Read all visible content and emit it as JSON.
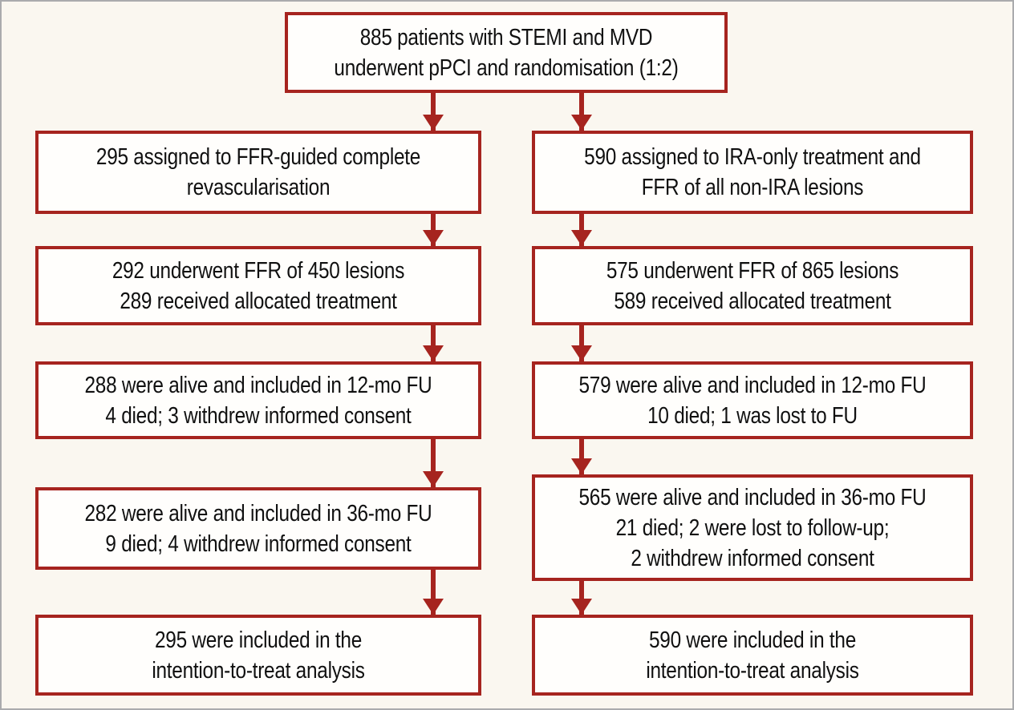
{
  "figure": {
    "type": "consort-patient-flow-diagram",
    "colors": {
      "box_border": "#a6241f",
      "arrow": "#a6241f",
      "background": "#faf7f0",
      "box_fill": "#fffefc",
      "outer_frame": "#aaabad",
      "text": "#101010"
    },
    "enrollment": {
      "lines": [
        "885 patients with STEMI and MVD",
        "underwent pPCI and randomisation (1:2)"
      ]
    },
    "left_arm": {
      "name": "FFR-guided complete revascularisation arm",
      "boxes": [
        {
          "lines": [
            "295 assigned to FFR-guided complete",
            "revascularisation"
          ]
        },
        {
          "lines": [
            "292 underwent FFR of 450 lesions",
            "289 received allocated treatment"
          ]
        },
        {
          "lines": [
            "288 were alive and included in 12-mo FU",
            "4 died; 3 withdrew informed consent"
          ]
        },
        {
          "lines": [
            "282 were alive and included in 36-mo FU",
            "9 died; 4 withdrew informed consent"
          ]
        },
        {
          "lines": [
            "295 were included in the",
            "intention-to-treat analysis"
          ]
        }
      ]
    },
    "right_arm": {
      "name": "IRA-only treatment arm",
      "boxes": [
        {
          "lines": [
            "590 assigned to IRA-only treatment and",
            "FFR of all non-IRA lesions"
          ]
        },
        {
          "lines": [
            "575 underwent FFR of 865 lesions",
            "589 received allocated treatment"
          ]
        },
        {
          "lines": [
            "579 were alive and included in 12-mo FU",
            "10 died; 1 was lost to FU"
          ]
        },
        {
          "lines": [
            "565 were alive and included in 36-mo FU",
            "21 died; 2 were lost to follow-up;",
            "2 withdrew informed consent"
          ]
        },
        {
          "lines": [
            "590 were included in the",
            "intention-to-treat analysis"
          ]
        }
      ]
    }
  }
}
